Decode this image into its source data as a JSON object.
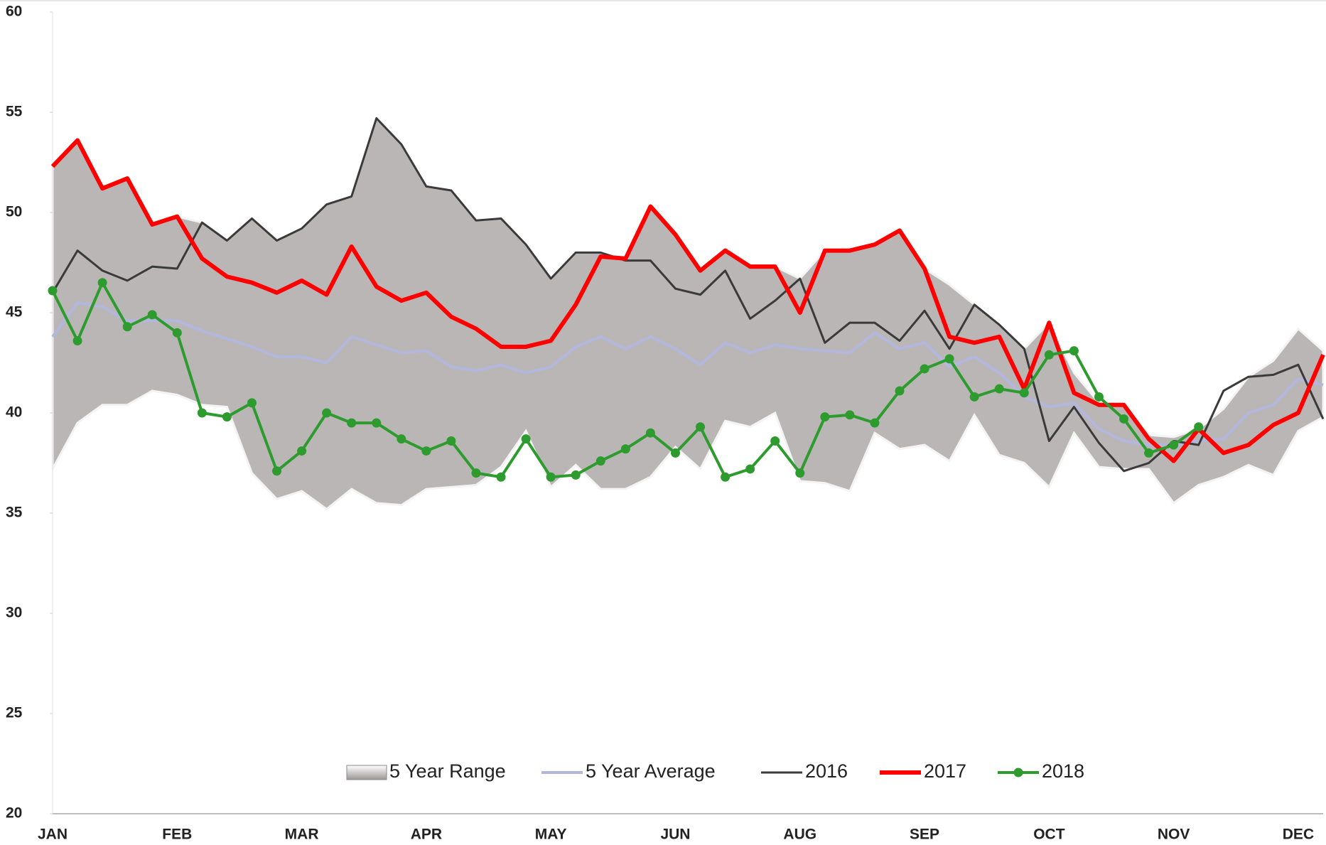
{
  "chart_data": {
    "type": "line",
    "categories": [
      "JAN",
      null,
      null,
      null,
      null,
      "FEB",
      null,
      null,
      null,
      null,
      "MAR",
      null,
      null,
      null,
      null,
      "APR",
      null,
      null,
      null,
      null,
      "MAY",
      null,
      null,
      null,
      null,
      "JUN",
      null,
      null,
      null,
      null,
      "AUG",
      null,
      null,
      null,
      null,
      "SEP",
      null,
      null,
      null,
      null,
      "OCT",
      null,
      null,
      null,
      null,
      "NOV",
      null,
      null,
      null,
      null,
      "DEC",
      null
    ],
    "ylim": [
      20,
      60
    ],
    "yticks": [
      20,
      25,
      30,
      35,
      40,
      45,
      50,
      55,
      60
    ],
    "grid": false,
    "legend": "bottom",
    "range": {
      "name": "5 Year Range",
      "color": "#bab6b6",
      "upper": [
        52.3,
        53.6,
        51.2,
        51.7,
        49.4,
        49.8,
        49.5,
        48.6,
        49.7,
        48.6,
        49.2,
        50.4,
        50.8,
        54.7,
        53.4,
        51.3,
        51.1,
        49.6,
        49.7,
        48.4,
        46.7,
        48.0,
        48.0,
        47.7,
        50.3,
        48.9,
        47.1,
        48.1,
        47.3,
        47.3,
        46.7,
        48.1,
        48.1,
        48.4,
        49.1,
        47.2,
        46.4,
        45.4,
        44.4,
        43.2,
        44.5,
        42.0,
        40.5,
        40.4,
        38.9,
        38.8,
        39.2,
        40.2,
        41.8,
        42.6,
        44.2,
        43.1
      ],
      "lower": [
        37.2,
        39.5,
        40.4,
        40.4,
        41.1,
        40.9,
        40.4,
        40.3,
        37.0,
        35.7,
        36.1,
        35.2,
        36.2,
        35.5,
        35.4,
        36.2,
        36.3,
        36.4,
        37.3,
        39.1,
        36.3,
        37.4,
        36.2,
        36.2,
        36.8,
        38.3,
        37.2,
        39.6,
        39.3,
        40.0,
        36.6,
        36.5,
        36.1,
        39.0,
        38.2,
        38.4,
        37.6,
        39.9,
        37.9,
        37.5,
        36.3,
        39.0,
        37.3,
        37.2,
        37.2,
        35.5,
        36.4,
        36.8,
        37.4,
        36.9,
        39.1,
        39.8
      ]
    },
    "series": [
      {
        "name": "5 Year Average",
        "color": "#b3b6dd",
        "width": 4,
        "values": [
          43.8,
          45.5,
          45.3,
          44.6,
          44.6,
          44.6,
          44.1,
          43.7,
          43.3,
          42.8,
          42.8,
          42.5,
          43.8,
          43.4,
          43.0,
          43.1,
          42.3,
          42.1,
          42.4,
          42.0,
          42.3,
          43.3,
          43.8,
          43.2,
          43.8,
          43.2,
          42.4,
          43.5,
          43.0,
          43.4,
          43.2,
          43.1,
          43.0,
          44.0,
          43.2,
          43.5,
          42.3,
          42.8,
          42.0,
          40.8,
          40.3,
          40.5,
          39.2,
          38.6,
          38.4,
          38.4,
          38.6,
          38.7,
          40.0,
          40.4,
          41.7,
          41.4
        ]
      },
      {
        "name": "2016",
        "color": "#3a3a3a",
        "width": 3,
        "values": [
          46.0,
          48.1,
          47.1,
          46.6,
          47.3,
          47.2,
          49.5,
          48.6,
          49.7,
          48.6,
          49.2,
          50.4,
          50.8,
          54.7,
          53.4,
          51.3,
          51.1,
          49.6,
          49.7,
          48.4,
          46.7,
          48.0,
          48.0,
          47.6,
          47.6,
          46.2,
          45.9,
          47.1,
          44.7,
          45.6,
          46.7,
          43.5,
          44.5,
          44.5,
          43.6,
          45.1,
          43.2,
          45.4,
          44.4,
          43.2,
          38.6,
          40.3,
          38.5,
          37.1,
          37.5,
          38.6,
          38.4,
          41.1,
          41.8,
          41.9,
          42.4,
          39.7
        ]
      },
      {
        "name": "2017",
        "color": "#ff0000",
        "width": 6,
        "values": [
          52.3,
          53.6,
          51.2,
          51.7,
          49.4,
          49.8,
          47.7,
          46.8,
          46.5,
          46.0,
          46.6,
          45.9,
          48.3,
          46.3,
          45.6,
          46.0,
          44.8,
          44.2,
          43.3,
          43.3,
          43.6,
          45.4,
          47.8,
          47.7,
          50.3,
          48.9,
          47.1,
          48.1,
          47.3,
          47.3,
          45.0,
          48.1,
          48.1,
          48.4,
          49.1,
          47.2,
          43.8,
          43.5,
          43.8,
          41.2,
          44.5,
          41.0,
          40.4,
          40.4,
          38.7,
          37.6,
          39.2,
          38.0,
          38.4,
          39.4,
          40.0,
          42.9
        ]
      },
      {
        "name": "2018",
        "color": "#2e9b2e",
        "width": 4,
        "markers": true,
        "values": [
          46.1,
          43.6,
          46.5,
          44.3,
          44.9,
          44.0,
          40.0,
          39.8,
          40.5,
          37.1,
          38.1,
          40.0,
          39.5,
          39.5,
          38.7,
          38.1,
          38.6,
          37.0,
          36.8,
          38.7,
          36.8,
          36.9,
          37.6,
          38.2,
          39.0,
          38.0,
          39.3,
          36.8,
          37.2,
          38.6,
          37.0,
          39.8,
          39.9,
          39.5,
          41.1,
          42.2,
          42.7,
          40.8,
          41.2,
          41.0,
          42.9,
          43.1,
          40.8,
          39.7,
          38.0,
          38.4,
          39.3,
          null,
          null,
          null,
          null,
          null
        ]
      }
    ]
  }
}
